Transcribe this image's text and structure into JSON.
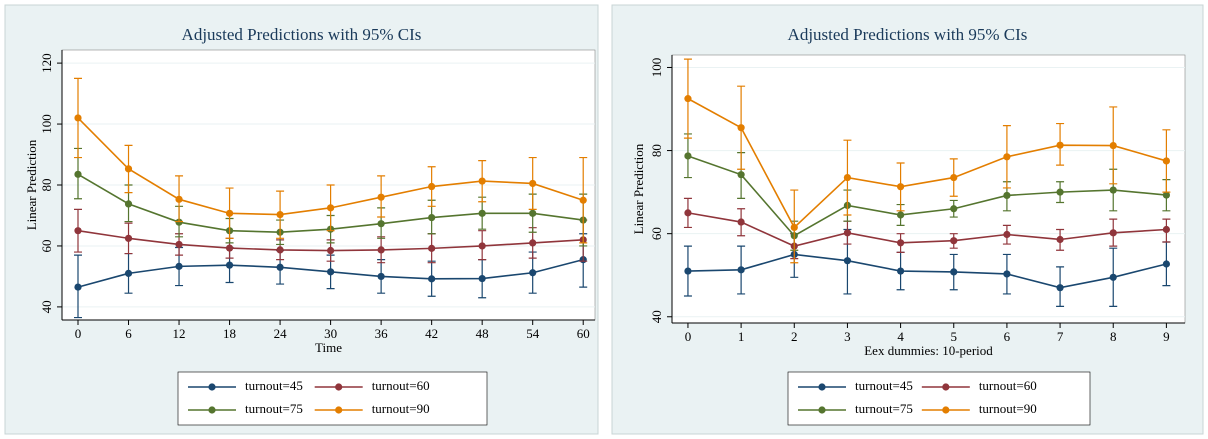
{
  "chart_data": [
    {
      "type": "line",
      "title": "Adjusted Predictions with 95% CIs",
      "x_label": "Time",
      "y_label": "Linear Prediction",
      "x": [
        0,
        6,
        12,
        18,
        24,
        30,
        36,
        42,
        48,
        54,
        60
      ],
      "xlim": [
        -1.9,
        61.4
      ],
      "xticks": [
        0,
        6,
        12,
        18,
        24,
        30,
        36,
        42,
        48,
        54,
        60
      ],
      "ylim": [
        35.7,
        124.3
      ],
      "yticks": [
        40,
        60,
        80,
        100,
        120
      ],
      "grid": true,
      "series": [
        {
          "name": "turnout=45",
          "color": "#1a476f",
          "values": [
            46.5,
            51,
            53.3,
            53.7,
            53,
            51.5,
            50,
            49.2,
            49.3,
            51.2,
            55.5
          ],
          "ci_low": [
            36.5,
            44.5,
            47,
            48,
            47.5,
            46,
            44.5,
            43.5,
            43,
            44.5,
            46.5
          ],
          "ci_high": [
            57,
            57.5,
            59.5,
            59.5,
            58.5,
            57,
            55.5,
            55,
            55.5,
            58,
            64
          ]
        },
        {
          "name": "turnout=60",
          "color": "#90353b",
          "values": [
            65,
            62.5,
            60.5,
            59.3,
            58.7,
            58.5,
            58.7,
            59.2,
            60,
            61,
            62
          ],
          "ci_low": [
            58,
            57.5,
            57,
            56,
            55.5,
            55,
            54.5,
            54.5,
            55.5,
            56,
            55
          ],
          "ci_high": [
            72,
            67.5,
            64,
            62.5,
            62,
            62,
            63,
            64,
            65,
            66,
            68.5
          ]
        },
        {
          "name": "turnout=75",
          "color": "#55752f",
          "values": [
            83.5,
            73.8,
            67.8,
            65,
            64.5,
            65.5,
            67.3,
            69.3,
            70.7,
            70.7,
            68.5
          ],
          "ci_low": [
            75.5,
            68,
            63,
            61,
            60.5,
            61,
            62.5,
            64,
            65.5,
            64.5,
            60
          ],
          "ci_high": [
            92,
            80,
            73,
            69,
            68.5,
            70,
            72.5,
            75,
            76,
            77,
            77
          ]
        },
        {
          "name": "turnout=90",
          "color": "#e37e00",
          "values": [
            102,
            85.3,
            75.3,
            70.7,
            70.3,
            72.5,
            76,
            79.5,
            81.3,
            80.5,
            75
          ],
          "ci_low": [
            89,
            77.5,
            68,
            62.5,
            62.5,
            65,
            69.5,
            73,
            74.5,
            72,
            61
          ],
          "ci_high": [
            115,
            93,
            83,
            79,
            78,
            80,
            83,
            86,
            88,
            89,
            89
          ]
        }
      ]
    },
    {
      "type": "line",
      "title": "Adjusted Predictions with 95% CIs",
      "x_label": "Eex dummies: 10-period",
      "y_label": "Linear Prediction",
      "x": [
        0,
        1,
        2,
        3,
        4,
        5,
        6,
        7,
        8,
        9
      ],
      "xlim": [
        -0.3,
        9.35
      ],
      "xticks": [
        0,
        1,
        2,
        3,
        4,
        5,
        6,
        7,
        8,
        9
      ],
      "ylim": [
        38.5,
        103
      ],
      "yticks": [
        40,
        60,
        80,
        100
      ],
      "grid": true,
      "series": [
        {
          "name": "turnout=45",
          "color": "#1a476f",
          "values": [
            51,
            51.3,
            55,
            53.5,
            51,
            50.8,
            50.3,
            47,
            49.5,
            52.7
          ],
          "ci_low": [
            45,
            45.5,
            49.5,
            45.5,
            46.5,
            46.5,
            45.5,
            42.5,
            42.5,
            47.5
          ],
          "ci_high": [
            57,
            57,
            60,
            61,
            55.5,
            55,
            55,
            52,
            56.5,
            58
          ]
        },
        {
          "name": "turnout=60",
          "color": "#90353b",
          "values": [
            65,
            62.8,
            57,
            60.2,
            57.8,
            58.3,
            59.8,
            58.6,
            60.2,
            61
          ],
          "ci_low": [
            61.5,
            59.5,
            54,
            57.5,
            55.5,
            56.5,
            57.5,
            56,
            57,
            58
          ],
          "ci_high": [
            68.5,
            66,
            60,
            63,
            60,
            60,
            62,
            61,
            63.5,
            63.5
          ]
        },
        {
          "name": "turnout=75",
          "color": "#55752f",
          "values": [
            78.7,
            74.2,
            59.5,
            66.8,
            64.5,
            66,
            69.2,
            70,
            70.5,
            69.3
          ],
          "ci_low": [
            73.5,
            68.5,
            56,
            63,
            62,
            64,
            65.5,
            67.5,
            65.5,
            65.5
          ],
          "ci_high": [
            84,
            79.5,
            63,
            70.5,
            67,
            68,
            72.5,
            72.5,
            75.5,
            73
          ]
        },
        {
          "name": "turnout=90",
          "color": "#e37e00",
          "values": [
            92.5,
            85.5,
            61.5,
            73.5,
            71.3,
            73.5,
            78.5,
            81.3,
            81.2,
            77.5
          ],
          "ci_low": [
            83,
            75.5,
            53,
            64.5,
            65.5,
            69,
            71,
            76.5,
            72,
            70
          ],
          "ci_high": [
            102,
            95.5,
            70.5,
            82.5,
            77,
            78,
            86,
            86.5,
            90.5,
            85
          ]
        }
      ]
    }
  ]
}
